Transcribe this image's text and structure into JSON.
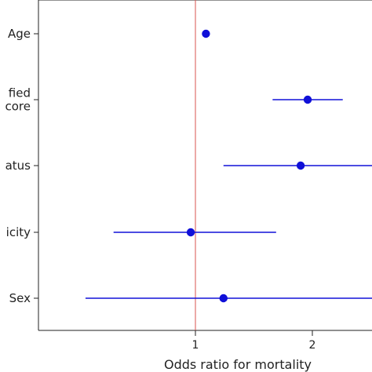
{
  "chart_data": {
    "type": "forest",
    "xlabel": "Odds ratio for mortality",
    "xlim": [
      0.0,
      2.5
    ],
    "xticks": [
      {
        "value": 1,
        "label": "1"
      },
      {
        "value": 2,
        "label": "2"
      }
    ],
    "reference_line": {
      "value": 1,
      "color": "#d9534f"
    },
    "point_color": "#1010d8",
    "variables": [
      {
        "label": "Age",
        "or": 1.09,
        "ci_low": null,
        "ci_high": null
      },
      {
        "label": "fied\ncore",
        "or": 1.96,
        "ci_low": 1.66,
        "ci_high": 2.26
      },
      {
        "label": "atus",
        "or": 1.9,
        "ci_low": 1.24,
        "ci_high": 2.55
      },
      {
        "label": "icity",
        "or": 0.96,
        "ci_low": 0.3,
        "ci_high": 1.69
      },
      {
        "label": "Sex",
        "or": 1.24,
        "ci_low": 0.06,
        "ci_high": 2.55
      }
    ]
  }
}
